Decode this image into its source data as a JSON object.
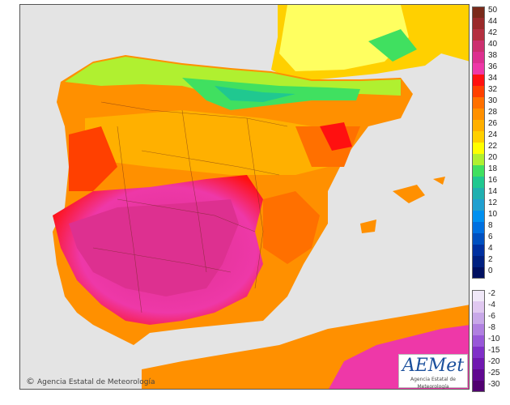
{
  "credit": "Agencia Estatal de Meteorología",
  "logo": {
    "word": "AEMet",
    "sub": "Agencia Estatal de Meteorología"
  },
  "legend": {
    "positive": [
      {
        "label": "50",
        "color": "#7a2a1a"
      },
      {
        "label": "44",
        "color": "#9a2a2a"
      },
      {
        "label": "42",
        "color": "#b43040"
      },
      {
        "label": "40",
        "color": "#cc3070"
      },
      {
        "label": "38",
        "color": "#dd3090"
      },
      {
        "label": "36",
        "color": "#ee38a8"
      },
      {
        "label": "34",
        "color": "#ff1010"
      },
      {
        "label": "32",
        "color": "#ff4000"
      },
      {
        "label": "30",
        "color": "#ff7000"
      },
      {
        "label": "28",
        "color": "#ff9000"
      },
      {
        "label": "26",
        "color": "#ffb000"
      },
      {
        "label": "24",
        "color": "#ffd000"
      },
      {
        "label": "22",
        "color": "#ffff00"
      },
      {
        "label": "20",
        "color": "#b0f030"
      },
      {
        "label": "18",
        "color": "#40e060"
      },
      {
        "label": "16",
        "color": "#20c890"
      },
      {
        "label": "14",
        "color": "#20b0b0"
      },
      {
        "label": "12",
        "color": "#20a0d0"
      },
      {
        "label": "10",
        "color": "#0090f0"
      },
      {
        "label": "8",
        "color": "#0070e0"
      },
      {
        "label": "6",
        "color": "#0050c0"
      },
      {
        "label": "4",
        "color": "#0030a0"
      },
      {
        "label": "2",
        "color": "#002080"
      },
      {
        "label": "0",
        "color": "#001060"
      }
    ],
    "negative": [
      {
        "label": "-2",
        "color": "#f0e8f8"
      },
      {
        "label": "-4",
        "color": "#e0c8f0"
      },
      {
        "label": "-6",
        "color": "#c8a8e8"
      },
      {
        "label": "-8",
        "color": "#b080e0"
      },
      {
        "label": "-10",
        "color": "#9858d8"
      },
      {
        "label": "-15",
        "color": "#8030c8"
      },
      {
        "label": "-20",
        "color": "#7018b0"
      },
      {
        "label": "-25",
        "color": "#600890"
      },
      {
        "label": "-30",
        "color": "#500070"
      }
    ]
  }
}
